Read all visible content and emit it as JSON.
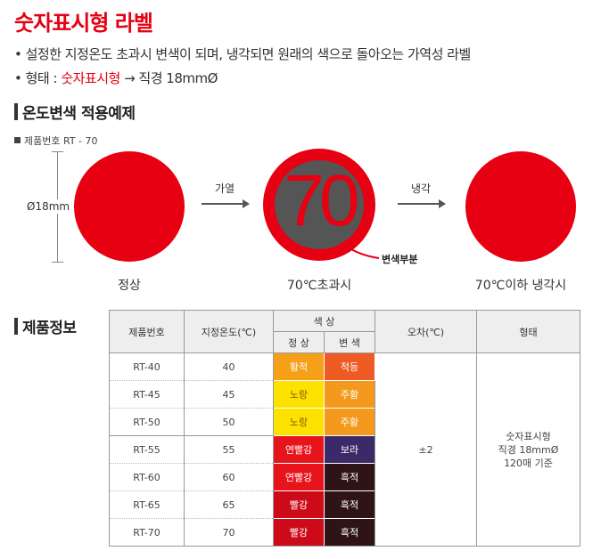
{
  "title": "숫자표시형 라벨",
  "bullets": {
    "line1": "• 설정한 지정온도 초과시 변색이 되며, 냉각되면 원래의 색으로 돌아오는 가역성 라벨",
    "line2_prefix": "• 형태 : ",
    "line2_highlight": "숫자표시형",
    "line2_suffix": " → 직경 18mmØ"
  },
  "example": {
    "heading": "온도변색 적용예제",
    "product_no": "제품번호 RT - 70",
    "diameter_label": "Ø18mm",
    "number_display": "70",
    "arrow_heat_label": "가열",
    "arrow_cool_label": "냉각",
    "callout": "변색부분",
    "captions": [
      "정상",
      "70℃초과시",
      "70℃이하 냉각시"
    ]
  },
  "product_info": {
    "heading": "제품정보",
    "headers": {
      "product_no": "제품번호",
      "temp": "지정온도(℃)",
      "color": "색 상",
      "normal": "정 상",
      "changed": "변 색",
      "tolerance": "오차(℃)",
      "shape": "형태"
    },
    "tolerance": "±2",
    "shape_lines": [
      "숫자표시형",
      "직경 18mmØ",
      "120매 기준"
    ],
    "rows": [
      {
        "no": "RT-40",
        "temp": "40",
        "normal": "황적",
        "normal_color": "#f6a01a",
        "changed": "적등",
        "changed_color": "#ee5a24"
      },
      {
        "no": "RT-45",
        "temp": "45",
        "normal": "노랑",
        "normal_color": "#fde200",
        "changed": "주황",
        "changed_color": "#f39a1e"
      },
      {
        "no": "RT-50",
        "temp": "50",
        "normal": "노랑",
        "normal_color": "#fde200",
        "changed": "주황",
        "changed_color": "#f39a1e"
      },
      {
        "no": "RT-55",
        "temp": "55",
        "normal": "연빨강",
        "normal_color": "#e8141c",
        "changed": "보라",
        "changed_color": "#3a2a68"
      },
      {
        "no": "RT-60",
        "temp": "60",
        "normal": "연빨강",
        "normal_color": "#e8141c",
        "changed": "흑적",
        "changed_color": "#2e1416"
      },
      {
        "no": "RT-65",
        "temp": "65",
        "normal": "빨강",
        "normal_color": "#cc0a18",
        "changed": "흑적",
        "changed_color": "#2e1416"
      },
      {
        "no": "RT-70",
        "temp": "70",
        "normal": "빨강",
        "normal_color": "#cc0a18",
        "changed": "흑적",
        "changed_color": "#2e1416"
      }
    ]
  },
  "colors": {
    "accent": "#e60012",
    "thermo_gray": "#555555"
  }
}
